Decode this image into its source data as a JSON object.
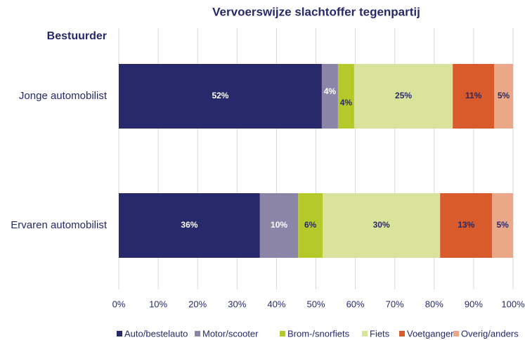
{
  "chart_data": {
    "type": "stacked_barh",
    "title": "Vervoerswijze slachtoffer tegenpartij",
    "ylabel": "Bestuurder",
    "categories": [
      "Jonge automobilist",
      "Ervaren automobilist"
    ],
    "series": [
      {
        "name": "Auto/bestelauto",
        "color": "#27296a",
        "label_color": "#ffffff",
        "values": [
          51.5,
          35.8
        ],
        "value_labels": [
          "52%",
          "36%"
        ]
      },
      {
        "name": "Motor/scooter",
        "color": "#8b86a8",
        "label_color": "#ffffff",
        "values": [
          4.1,
          9.7
        ],
        "value_labels": [
          "4%",
          "10%"
        ]
      },
      {
        "name": "Brom-/snorfiets",
        "color": "#b5c92b",
        "label_color": "#27296a",
        "values": [
          4.1,
          6.2
        ],
        "value_labels": [
          "4%",
          "6%"
        ]
      },
      {
        "name": "Fiets",
        "color": "#d9e39b",
        "label_color": "#27296a",
        "values": [
          25.0,
          29.8
        ],
        "value_labels": [
          "25%",
          "30%"
        ]
      },
      {
        "name": "Voetganger",
        "color": "#d95a2b",
        "label_color": "#27296a",
        "values": [
          10.5,
          13.2
        ],
        "value_labels": [
          "11%",
          "13%"
        ]
      },
      {
        "name": "Overig/anders",
        "color": "#eba888",
        "label_color": "#27296a",
        "values": [
          4.8,
          5.3
        ],
        "value_labels": [
          "5%",
          "5%"
        ]
      }
    ],
    "xlim": [
      0,
      100
    ],
    "xticks": [
      {
        "value": 0,
        "label": "0%"
      },
      {
        "value": 10,
        "label": "10%"
      },
      {
        "value": 20,
        "label": "20%"
      },
      {
        "value": 30,
        "label": "30%"
      },
      {
        "value": 40,
        "label": "40%"
      },
      {
        "value": 50,
        "label": "50%"
      },
      {
        "value": 60,
        "label": "60%"
      },
      {
        "value": 70,
        "label": "70%"
      },
      {
        "value": 80,
        "label": "80%"
      },
      {
        "value": 90,
        "label": "90%"
      },
      {
        "value": 100,
        "label": "100%"
      }
    ],
    "grid": true,
    "legend": "bottom"
  }
}
